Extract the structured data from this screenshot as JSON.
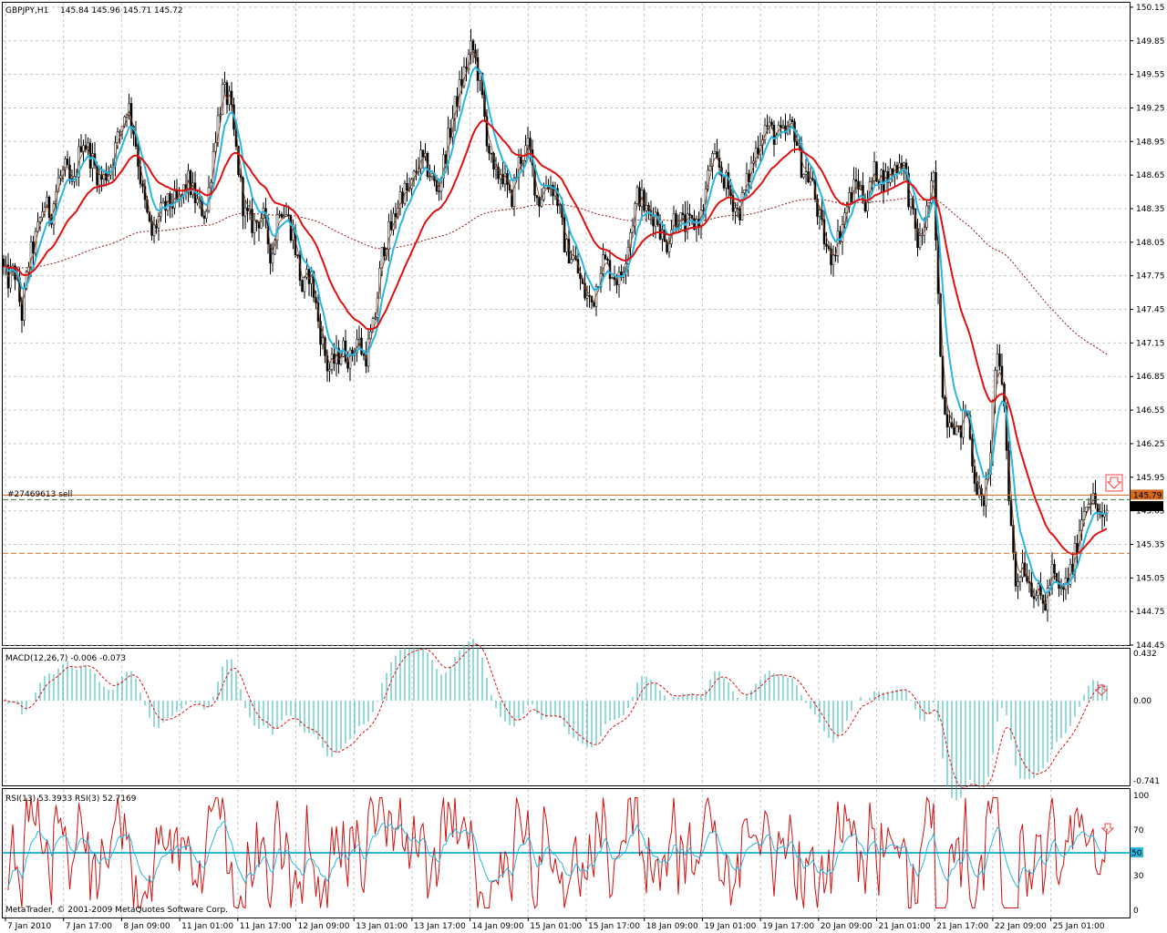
{
  "chart_data": {
    "type": "candlestick",
    "main": {
      "title": "GBPJPY,H1",
      "ohlc_header": "145.84 145.96 145.71 145.72",
      "price_ticks": [
        "150.15",
        "149.85",
        "149.55",
        "149.25",
        "148.95",
        "148.65",
        "148.35",
        "148.05",
        "147.75",
        "147.45",
        "147.15",
        "146.85",
        "146.55",
        "146.25",
        "145.95",
        "145.65",
        "145.35",
        "145.05",
        "144.75",
        "144.45"
      ],
      "ylim": [
        144.45,
        150.19
      ],
      "order_label": "#27469613 sell",
      "order_price_label": "145.79",
      "current_price_label": "145.72",
      "order_price": 145.79,
      "current_price": 145.72,
      "sl_line_price": 145.75,
      "tp_line_price": 145.27,
      "close_path": [
        [
          0,
          147.9
        ],
        [
          8,
          147.7
        ],
        [
          16,
          147.8
        ],
        [
          24,
          147.4
        ],
        [
          32,
          147.9
        ],
        [
          40,
          148.1
        ],
        [
          48,
          148.4
        ],
        [
          56,
          148.3
        ],
        [
          64,
          148.6
        ],
        [
          72,
          148.7
        ],
        [
          80,
          148.5
        ],
        [
          90,
          149.0
        ],
        [
          100,
          148.8
        ],
        [
          110,
          148.6
        ],
        [
          120,
          148.7
        ],
        [
          130,
          149.0
        ],
        [
          140,
          149.3
        ],
        [
          148,
          149.0
        ],
        [
          156,
          148.5
        ],
        [
          166,
          148.1
        ],
        [
          176,
          148.3
        ],
        [
          186,
          148.4
        ],
        [
          196,
          148.4
        ],
        [
          206,
          148.6
        ],
        [
          216,
          148.4
        ],
        [
          226,
          148.3
        ],
        [
          236,
          149.0
        ],
        [
          244,
          149.4
        ],
        [
          252,
          149.3
        ],
        [
          260,
          148.8
        ],
        [
          268,
          148.3
        ],
        [
          278,
          148.2
        ],
        [
          288,
          148.3
        ],
        [
          298,
          147.9
        ],
        [
          306,
          148.4
        ],
        [
          314,
          148.3
        ],
        [
          322,
          148.1
        ],
        [
          332,
          147.6
        ],
        [
          340,
          147.8
        ],
        [
          350,
          147.3
        ],
        [
          360,
          146.9
        ],
        [
          368,
          147.0
        ],
        [
          376,
          147.1
        ],
        [
          384,
          147.0
        ],
        [
          392,
          147.2
        ],
        [
          400,
          147.0
        ],
        [
          410,
          147.3
        ],
        [
          420,
          148.0
        ],
        [
          430,
          148.2
        ],
        [
          440,
          148.5
        ],
        [
          450,
          148.5
        ],
        [
          460,
          148.8
        ],
        [
          470,
          148.7
        ],
        [
          480,
          148.5
        ],
        [
          490,
          148.9
        ],
        [
          500,
          149.3
        ],
        [
          510,
          149.6
        ],
        [
          518,
          149.8
        ],
        [
          526,
          149.5
        ],
        [
          534,
          149.0
        ],
        [
          542,
          148.6
        ],
        [
          550,
          148.7
        ],
        [
          560,
          148.4
        ],
        [
          570,
          148.8
        ],
        [
          580,
          148.9
        ],
        [
          590,
          148.4
        ],
        [
          600,
          148.6
        ],
        [
          610,
          148.5
        ],
        [
          620,
          148.0
        ],
        [
          630,
          147.9
        ],
        [
          640,
          147.6
        ],
        [
          650,
          147.5
        ],
        [
          660,
          147.9
        ],
        [
          670,
          147.8
        ],
        [
          680,
          147.7
        ],
        [
          690,
          148.1
        ],
        [
          700,
          148.5
        ],
        [
          710,
          148.3
        ],
        [
          720,
          148.3
        ],
        [
          730,
          148.0
        ],
        [
          740,
          148.3
        ],
        [
          750,
          148.2
        ],
        [
          760,
          148.2
        ],
        [
          770,
          148.3
        ],
        [
          780,
          148.8
        ],
        [
          790,
          148.7
        ],
        [
          800,
          148.5
        ],
        [
          810,
          148.3
        ],
        [
          820,
          148.6
        ],
        [
          830,
          148.9
        ],
        [
          840,
          149.1
        ],
        [
          850,
          149.0
        ],
        [
          860,
          149.0
        ],
        [
          870,
          149.1
        ],
        [
          880,
          148.7
        ],
        [
          890,
          148.6
        ],
        [
          900,
          148.2
        ],
        [
          910,
          147.9
        ],
        [
          920,
          148.1
        ],
        [
          930,
          148.4
        ],
        [
          940,
          148.6
        ],
        [
          950,
          148.4
        ],
        [
          960,
          148.7
        ],
        [
          970,
          148.6
        ],
        [
          980,
          148.7
        ],
        [
          990,
          148.8
        ],
        [
          1000,
          148.3
        ],
        [
          1008,
          148.0
        ],
        [
          1016,
          148.3
        ],
        [
          1024,
          148.6
        ],
        [
          1030,
          147.3
        ],
        [
          1036,
          146.5
        ],
        [
          1044,
          146.5
        ],
        [
          1052,
          146.3
        ],
        [
          1060,
          146.6
        ],
        [
          1068,
          146.0
        ],
        [
          1076,
          145.7
        ],
        [
          1084,
          145.9
        ],
        [
          1092,
          147.0
        ],
        [
          1100,
          146.8
        ],
        [
          1108,
          145.6
        ],
        [
          1114,
          145.0
        ],
        [
          1122,
          145.2
        ],
        [
          1130,
          145.0
        ],
        [
          1138,
          144.9
        ],
        [
          1146,
          144.8
        ],
        [
          1154,
          145.1
        ],
        [
          1162,
          144.9
        ],
        [
          1170,
          145.0
        ],
        [
          1178,
          145.2
        ],
        [
          1186,
          145.6
        ],
        [
          1194,
          145.8
        ],
        [
          1202,
          145.7
        ],
        [
          1210,
          145.5
        ],
        [
          1216,
          145.72
        ]
      ]
    },
    "macd": {
      "title": "MACD(12,26,7) -0.006 -0.073",
      "ticks": [
        "0.432",
        "0.00",
        "-0.741"
      ],
      "ylim": [
        -0.741,
        0.432
      ]
    },
    "rsi": {
      "title": "RSI(13) 53.3933",
      "title2": "RSI(3) 52.7169",
      "ticks": [
        "100",
        "70",
        "50",
        "30",
        "0"
      ],
      "level_label": "50",
      "ylim": [
        0,
        100
      ]
    },
    "x_ticks": [
      "7 Jan 2010",
      "7 Jan 17:00",
      "8 Jan 09:00",
      "11 Jan 01:00",
      "11 Jan 17:00",
      "12 Jan 09:00",
      "13 Jan 01:00",
      "13 Jan 17:00",
      "14 Jan 09:00",
      "15 Jan 01:00",
      "15 Jan 17:00",
      "18 Jan 09:00",
      "19 Jan 01:00",
      "19 Jan 17:00",
      "20 Jan 09:00",
      "21 Jan 01:00",
      "21 Jan 17:00",
      "22 Jan 09:00",
      "25 Jan 01:00"
    ],
    "copyright": "MetaTrader, © 2001-2009 MetaQuotes Software Corp.",
    "colors": {
      "grid": "#c8c8c8",
      "ma_fast": "#29b6e0",
      "ma_slow": "#e01010",
      "ma_long": "#8b1a1a",
      "macd_hist": "#2bb5b0",
      "macd_signal": "#e01010",
      "rsi13": "#29b6e0",
      "rsi3": "#d01010",
      "order_line": "#d2691e",
      "arrow": "#ff4040"
    }
  }
}
